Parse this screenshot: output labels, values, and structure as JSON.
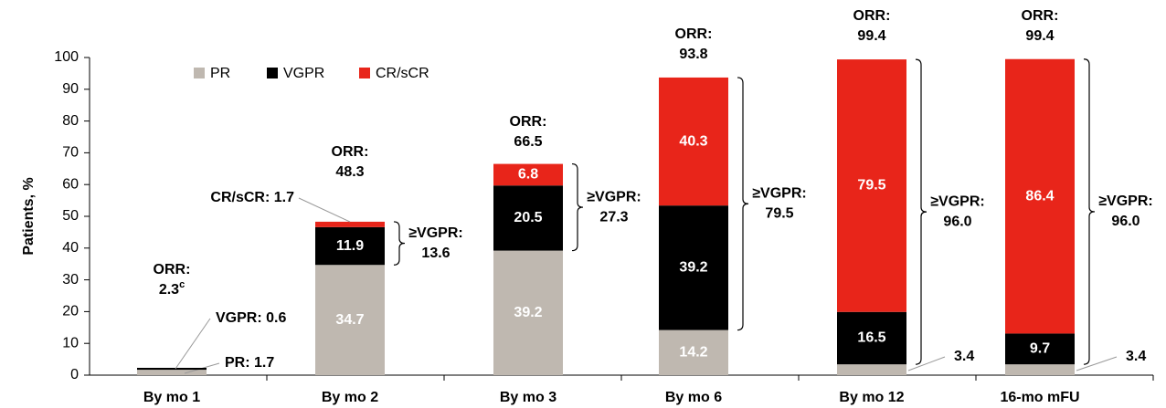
{
  "chart_data": {
    "type": "stacked-bar",
    "y_label": "Patients, %",
    "categories": [
      "By mo 1",
      "By mo 2",
      "By mo 3",
      "By mo 6",
      "By mo 12",
      "16-mo mFU"
    ],
    "series": [
      {
        "name": "PR",
        "color": "#bfb8b0",
        "values": [
          1.7,
          34.7,
          39.2,
          14.2,
          3.4,
          3.4
        ],
        "value_labels": [
          "PR: 1.7",
          "34.7",
          "39.2",
          "14.2",
          "3.4",
          "3.4"
        ]
      },
      {
        "name": "VGPR",
        "color": "#000000",
        "values": [
          0.6,
          11.9,
          20.5,
          39.2,
          16.5,
          9.7
        ],
        "value_labels": [
          "VGPR: 0.6",
          "11.9",
          "20.5",
          "39.2",
          "16.5",
          "9.7"
        ]
      },
      {
        "name": "CR/sCR",
        "color": "#e8251a",
        "values": [
          null,
          1.7,
          6.8,
          40.3,
          79.5,
          86.4
        ],
        "value_labels": [
          null,
          "CR/sCR: 1.7",
          "6.8",
          "40.3",
          "79.5",
          "86.4"
        ]
      }
    ],
    "annotations": {
      "orr": {
        "label": "ORR:",
        "values": [
          "2.3",
          "48.3",
          "66.5",
          "93.8",
          "99.4",
          "99.4"
        ],
        "footnotes": [
          "c",
          null,
          null,
          null,
          null,
          null
        ]
      },
      "vgpr_total": {
        "label": "≥VGPR:",
        "values": [
          null,
          "13.6",
          "27.3",
          "79.5",
          "96.0",
          "96.0"
        ]
      }
    },
    "ylim": [
      0,
      100
    ],
    "yticks": [
      0,
      10,
      20,
      30,
      40,
      50,
      60,
      70,
      80,
      90,
      100
    ],
    "legend": "top-left"
  }
}
